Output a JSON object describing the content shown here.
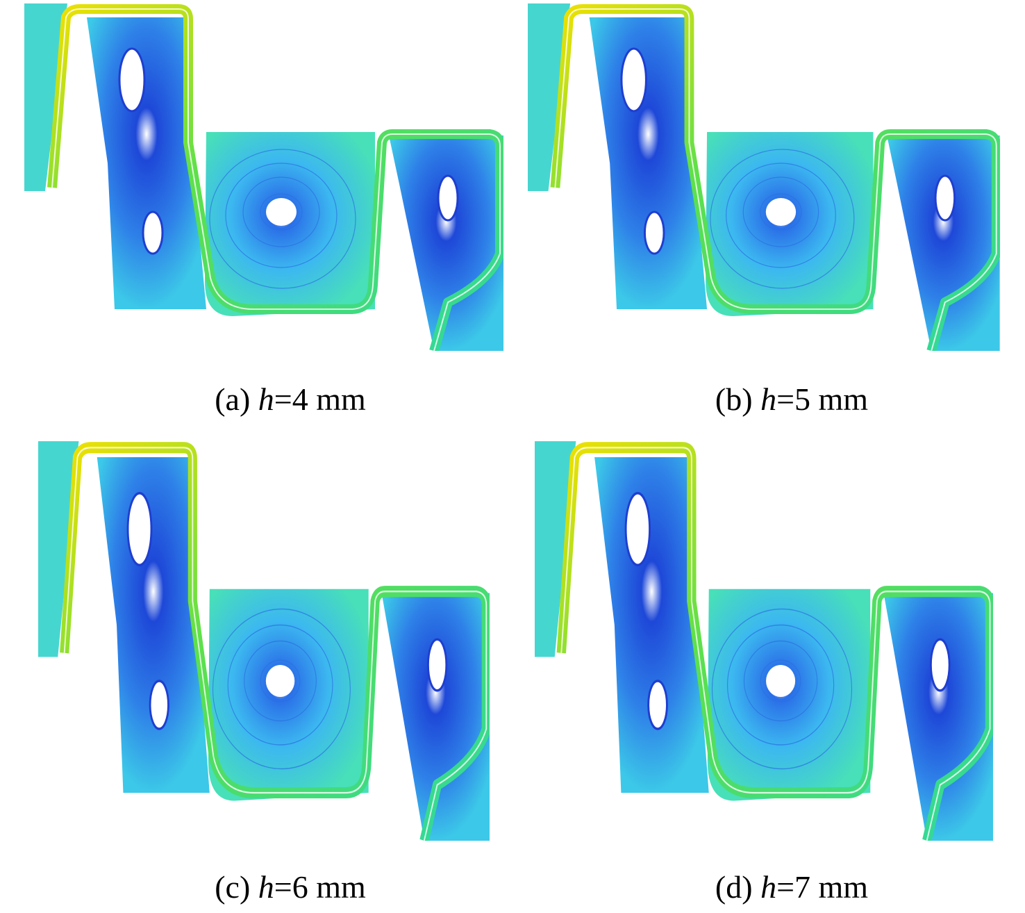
{
  "figures": [
    {
      "label": "(a)",
      "variable": "h",
      "value": "=4 mm"
    },
    {
      "label": "(b)",
      "variable": "h",
      "value": "=5 mm"
    },
    {
      "label": "(c)",
      "variable": "h",
      "value": "=6 mm"
    },
    {
      "label": "(d)",
      "variable": "h",
      "value": "=7 mm"
    }
  ]
}
